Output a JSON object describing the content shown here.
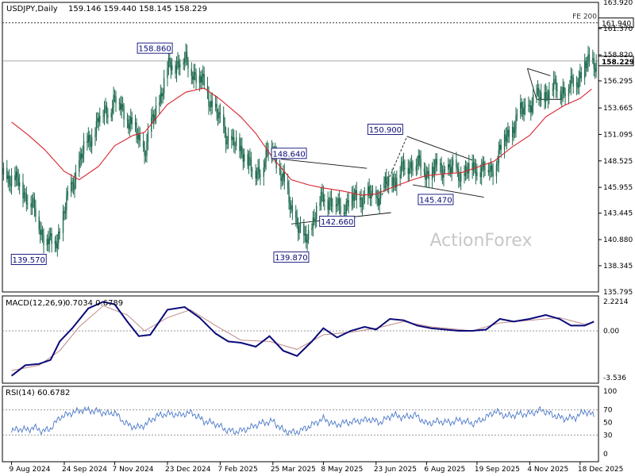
{
  "header": {
    "symbol": "USDJPY,Daily",
    "ohlc": "159.146 159.440 158.145 158.229"
  },
  "watermark": "ActionForex",
  "colors": {
    "candle": "#1f6b4f",
    "ma": "#d9232d",
    "macd": "#0a0a7a",
    "signal": "#c08a8a",
    "rsi": "#4a78c8",
    "label_border": "#0a0a7a",
    "grid": "#808080"
  },
  "chart_data": [
    {
      "type": "candlestick",
      "name": "price",
      "y_ticks": [
        "163.920",
        "161.370",
        "158.820",
        "156.295",
        "153.665",
        "151.095",
        "148.525",
        "145.955",
        "143.445",
        "140.880",
        "138.345",
        "135.795"
      ],
      "ylim": [
        135.795,
        163.92
      ],
      "x_ticks": [
        "9 Aug 2024",
        "24 Sep 2024",
        "7 Nov 2024",
        "23 Dec 2024",
        "7 Feb 2025",
        "25 Mar 2025",
        "8 May 2025",
        "23 Jun 2025",
        "6 Aug 2025",
        "19 Sep 2025",
        "4 Nov 2025",
        "18 Dec 2025"
      ],
      "last_price": "158.229",
      "level_label": "161.940",
      "level_text": "FE 200",
      "labels": [
        {
          "text": "158.860",
          "value": 158.86
        },
        {
          "text": "139.570",
          "value": 139.57
        },
        {
          "text": "139.870",
          "value": 139.87
        },
        {
          "text": "148.640",
          "value": 148.64
        },
        {
          "text": "142.660",
          "value": 142.66
        },
        {
          "text": "150.900",
          "value": 150.9
        },
        {
          "text": "145.470",
          "value": 145.47
        }
      ],
      "close_path": [
        [
          "9 Aug 2024",
          147.0
        ],
        [
          "24 Aug 2024",
          145.0
        ],
        [
          "5 Sep 2024",
          141.5
        ],
        [
          "15 Sep 2024",
          140.0
        ],
        [
          "24 Sep 2024",
          143.5
        ],
        [
          "7 Oct 2024",
          148.5
        ],
        [
          "24 Oct 2024",
          152.5
        ],
        [
          "7 Nov 2024",
          154.5
        ],
        [
          "17 Nov 2024",
          153.0
        ],
        [
          "3 Dec 2024",
          149.5
        ],
        [
          "14 Dec 2024",
          153.8
        ],
        [
          "23 Dec 2024",
          157.4
        ],
        [
          "3 Jan 2025",
          158.4
        ],
        [
          "11 Jan 2025",
          157.8
        ],
        [
          "24 Jan 2025",
          155.8
        ],
        [
          "7 Feb 2025",
          152.2
        ],
        [
          "18 Feb 2025",
          150.0
        ],
        [
          "28 Feb 2025",
          149.5
        ],
        [
          "8 Mar 2025",
          147.0
        ],
        [
          "25 Mar 2025",
          149.8
        ],
        [
          "7 Apr 2025",
          145.0
        ],
        [
          "21 Apr 2025",
          140.5
        ],
        [
          "8 May 2025",
          145.2
        ],
        [
          "21 May 2025",
          144.0
        ],
        [
          "7 Jun 2025",
          145.0
        ],
        [
          "23 Jun 2025",
          145.0
        ],
        [
          "10 Jul 2025",
          147.0
        ],
        [
          "25 Jul 2025",
          148.5
        ],
        [
          "6 Aug 2025",
          147.5
        ],
        [
          "23 Aug 2025",
          147.8
        ],
        [
          "6 Sep 2025",
          147.2
        ],
        [
          "19 Sep 2025",
          148.0
        ],
        [
          "1 Oct 2025",
          147.5
        ],
        [
          "13 Oct 2025",
          150.5
        ],
        [
          "28 Oct 2025",
          153.3
        ],
        [
          "4 Nov 2025",
          154.0
        ],
        [
          "16 Nov 2025",
          155.0
        ],
        [
          "25 Nov 2025",
          155.6
        ],
        [
          "8 Dec 2025",
          155.5
        ],
        [
          "18 Dec 2025",
          157.0
        ],
        [
          "28 Dec 2025",
          158.2
        ]
      ],
      "series": [
        {
          "name": "",
          "kind": "moving-average",
          "values": [
            [
              "9 Aug 2024",
              152.3
            ],
            [
              "24 Aug 2024",
              151.0
            ],
            [
              "7 Sep 2024",
              149.6
            ],
            [
              "24 Sep 2024",
              147.5
            ],
            [
              "7 Oct 2024",
              146.7
            ],
            [
              "24 Oct 2024",
              148.0
            ],
            [
              "7 Nov 2024",
              150.0
            ],
            [
              "23 Nov 2024",
              151.0
            ],
            [
              "3 Dec 2024",
              151.3
            ],
            [
              "23 Dec 2024",
              154.0
            ],
            [
              "8 Jan 2025",
              155.2
            ],
            [
              "24 Jan 2025",
              155.6
            ],
            [
              "7 Feb 2025",
              154.5
            ],
            [
              "25 Feb 2025",
              152.8
            ],
            [
              "10 Mar 2025",
              151.2
            ],
            [
              "25 Mar 2025",
              148.8
            ],
            [
              "10 Apr 2025",
              146.7
            ],
            [
              "25 Apr 2025",
              146.2
            ],
            [
              "8 May 2025",
              145.9
            ],
            [
              "25 May 2025",
              145.6
            ],
            [
              "10 Jun 2025",
              145.2
            ],
            [
              "23 Jun 2025",
              145.3
            ],
            [
              "8 Jul 2025",
              146.0
            ],
            [
              "25 Jul 2025",
              146.7
            ],
            [
              "6 Aug 2025",
              147.1
            ],
            [
              "25 Aug 2025",
              147.3
            ],
            [
              "6 Sep 2025",
              147.4
            ],
            [
              "19 Sep 2025",
              147.9
            ],
            [
              "4 Oct 2025",
              148.5
            ],
            [
              "20 Oct 2025",
              149.9
            ],
            [
              "4 Nov 2025",
              151.0
            ],
            [
              "18 Nov 2025",
              152.8
            ],
            [
              "4 Dec 2025",
              153.9
            ],
            [
              "18 Dec 2025",
              154.6
            ],
            [
              "28 Dec 2025",
              155.5
            ]
          ]
        }
      ]
    },
    {
      "type": "line",
      "name": "MACD",
      "title": "MACD(12,26,9)",
      "values_text": "0.7034 0.6789",
      "y_ticks": [
        "2.2214",
        "0.00",
        "-3.536"
      ],
      "ylim": [
        -3.536,
        2.2214
      ],
      "series": [
        {
          "name": "",
          "role": "macd",
          "values": [
            [
              "9 Aug 2024",
              -3.4
            ],
            [
              "21 Aug 2024",
              -2.6
            ],
            [
              "2 Sep 2024",
              -2.5
            ],
            [
              "12 Sep 2024",
              -2.2
            ],
            [
              "20 Sep 2024",
              -0.8
            ],
            [
              "1 Oct 2024",
              0.2
            ],
            [
              "15 Oct 2024",
              1.7
            ],
            [
              "28 Oct 2024",
              2.2
            ],
            [
              "7 Nov 2024",
              2.0
            ],
            [
              "18 Nov 2024",
              0.7
            ],
            [
              "28 Nov 2024",
              -0.4
            ],
            [
              "8 Dec 2024",
              -0.3
            ],
            [
              "23 Dec 2024",
              1.6
            ],
            [
              "7 Jan 2025",
              1.8
            ],
            [
              "20 Jan 2025",
              1.0
            ],
            [
              "3 Feb 2025",
              -0.2
            ],
            [
              "14 Feb 2025",
              -0.8
            ],
            [
              "25 Feb 2025",
              -0.9
            ],
            [
              "10 Mar 2025",
              -1.2
            ],
            [
              "22 Mar 2025",
              -0.4
            ],
            [
              "3 Apr 2025",
              -1.5
            ],
            [
              "15 Apr 2025",
              -1.9
            ],
            [
              "28 Apr 2025",
              -0.8
            ],
            [
              "8 May 2025",
              0.2
            ],
            [
              "20 May 2025",
              -0.5
            ],
            [
              "1 Jun 2025",
              0.0
            ],
            [
              "13 Jun 2025",
              0.3
            ],
            [
              "23 Jun 2025",
              0.1
            ],
            [
              "5 Jul 2025",
              0.9
            ],
            [
              "17 Jul 2025",
              0.8
            ],
            [
              "29 Jul 2025",
              0.4
            ],
            [
              "10 Aug 2025",
              0.2
            ],
            [
              "22 Aug 2025",
              0.1
            ],
            [
              "3 Sep 2025",
              0.0
            ],
            [
              "15 Sep 2025",
              0.0
            ],
            [
              "27 Sep 2025",
              0.1
            ],
            [
              "9 Oct 2025",
              0.9
            ],
            [
              "21 Oct 2025",
              0.7
            ],
            [
              "4 Nov 2025",
              0.9
            ],
            [
              "18 Nov 2025",
              1.2
            ],
            [
              "30 Nov 2025",
              0.9
            ],
            [
              "10 Dec 2025",
              0.4
            ],
            [
              "22 Dec 2025",
              0.4
            ],
            [
              "30 Dec 2025",
              0.7
            ]
          ]
        },
        {
          "name": "",
          "role": "signal",
          "values": [
            [
              "9 Aug 2024",
              -3.0
            ],
            [
              "2 Sep 2024",
              -2.6
            ],
            [
              "20 Sep 2024",
              -1.5
            ],
            [
              "7 Oct 2024",
              0.3
            ],
            [
              "28 Oct 2024",
              1.9
            ],
            [
              "18 Nov 2024",
              1.2
            ],
            [
              "3 Dec 2024",
              0.0
            ],
            [
              "23 Dec 2024",
              1.0
            ],
            [
              "12 Jan 2025",
              1.6
            ],
            [
              "3 Feb 2025",
              0.4
            ],
            [
              "25 Feb 2025",
              -0.7
            ],
            [
              "22 Mar 2025",
              -0.8
            ],
            [
              "15 Apr 2025",
              -1.4
            ],
            [
              "8 May 2025",
              -0.3
            ],
            [
              "1 Jun 2025",
              -0.1
            ],
            [
              "23 Jun 2025",
              0.2
            ],
            [
              "17 Jul 2025",
              0.7
            ],
            [
              "10 Aug 2025",
              0.3
            ],
            [
              "15 Sep 2025",
              0.0
            ],
            [
              "9 Oct 2025",
              0.6
            ],
            [
              "4 Nov 2025",
              0.8
            ],
            [
              "30 Nov 2025",
              1.0
            ],
            [
              "22 Dec 2025",
              0.5
            ],
            [
              "30 Dec 2025",
              0.68
            ]
          ]
        }
      ]
    },
    {
      "type": "line",
      "name": "RSI",
      "title": "RSI(14) 60.6782",
      "y_ticks": [
        "100",
        "70",
        "50",
        "30",
        "0"
      ],
      "ylim": [
        0,
        100
      ],
      "series": [
        {
          "name": "",
          "values": [
            [
              "9 Aug 2024",
              36
            ],
            [
              "15 Aug 2024",
              40
            ],
            [
              "22 Aug 2024",
              38
            ],
            [
              "29 Aug 2024",
              42
            ],
            [
              "5 Sep 2024",
              36
            ],
            [
              "12 Sep 2024",
              40
            ],
            [
              "20 Sep 2024",
              58
            ],
            [
              "30 Sep 2024",
              65
            ],
            [
              "10 Oct 2024",
              70
            ],
            [
              "22 Oct 2024",
              68
            ],
            [
              "1 Nov 2024",
              64
            ],
            [
              "7 Nov 2024",
              66
            ],
            [
              "14 Nov 2024",
              52
            ],
            [
              "21 Nov 2024",
              44
            ],
            [
              "28 Nov 2024",
              42
            ],
            [
              "5 Dec 2024",
              48
            ],
            [
              "13 Dec 2024",
              60
            ],
            [
              "23 Dec 2024",
              64
            ],
            [
              "3 Jan 2025",
              62
            ],
            [
              "13 Jan 2025",
              66
            ],
            [
              "24 Jan 2025",
              52
            ],
            [
              "3 Feb 2025",
              48
            ],
            [
              "12 Feb 2025",
              38
            ],
            [
              "21 Feb 2025",
              35
            ],
            [
              "3 Mar 2025",
              40
            ],
            [
              "13 Mar 2025",
              48
            ],
            [
              "25 Mar 2025",
              52
            ],
            [
              "4 Apr 2025",
              36
            ],
            [
              "14 Apr 2025",
              34
            ],
            [
              "24 Apr 2025",
              42
            ],
            [
              "8 May 2025",
              56
            ],
            [
              "18 May 2025",
              46
            ],
            [
              "28 May 2025",
              50
            ],
            [
              "7 Jun 2025",
              52
            ],
            [
              "17 Jun 2025",
              55
            ],
            [
              "27 Jun 2025",
              50
            ],
            [
              "7 Jul 2025",
              62
            ],
            [
              "17 Jul 2025",
              58
            ],
            [
              "27 Jul 2025",
              62
            ],
            [
              "6 Aug 2025",
              48
            ],
            [
              "16 Aug 2025",
              52
            ],
            [
              "26 Aug 2025",
              50
            ],
            [
              "5 Sep 2025",
              54
            ],
            [
              "15 Sep 2025",
              48
            ],
            [
              "25 Sep 2025",
              56
            ],
            [
              "5 Oct 2025",
              68
            ],
            [
              "15 Oct 2025",
              60
            ],
            [
              "25 Oct 2025",
              63
            ],
            [
              "4 Nov 2025",
              64
            ],
            [
              "14 Nov 2025",
              70
            ],
            [
              "24 Nov 2025",
              62
            ],
            [
              "4 Dec 2025",
              56
            ],
            [
              "14 Dec 2025",
              58
            ],
            [
              "22 Dec 2025",
              68
            ],
            [
              "30 Dec 2025",
              61
            ]
          ]
        }
      ]
    }
  ]
}
